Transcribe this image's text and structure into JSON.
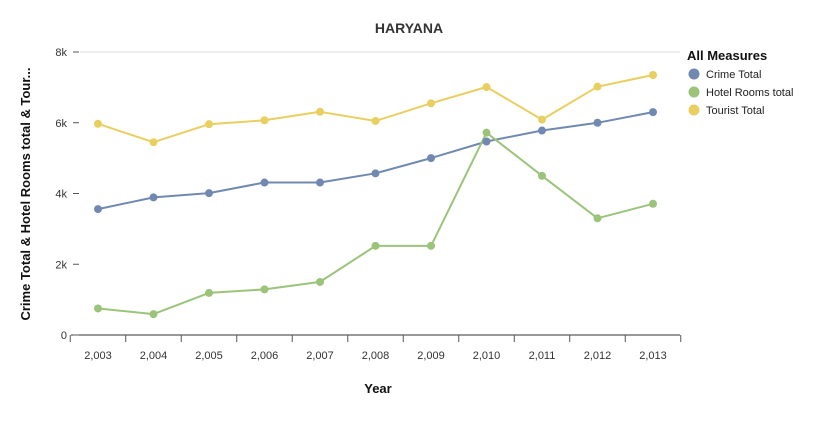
{
  "chart_data": {
    "type": "line",
    "title": "HARYANA",
    "xlabel": "Year",
    "ylabel": "Crime Total & Hotel Rooms total & Tour...",
    "categories": [
      "2,003",
      "2,004",
      "2,005",
      "2,006",
      "2,007",
      "2,008",
      "2,009",
      "2,010",
      "2,011",
      "2,012",
      "2,013"
    ],
    "ylim": [
      0,
      8000
    ],
    "yticks": [
      0,
      2000,
      4000,
      6000,
      8000
    ],
    "ytick_labels": [
      "0",
      "2k",
      "4k",
      "6k",
      "8k"
    ],
    "grid": "horizontal-top-line",
    "legend": {
      "title": "All Measures",
      "position": "right"
    },
    "series": [
      {
        "name": "Crime Total",
        "color": "#7189b0",
        "values": [
          3560,
          3890,
          4010,
          4310,
          4310,
          4570,
          5000,
          5470,
          5780,
          6000,
          6300
        ]
      },
      {
        "name": "Hotel Rooms total",
        "color": "#9bc47a",
        "values": [
          750,
          590,
          1190,
          1290,
          1500,
          2520,
          2520,
          5720,
          4500,
          3300,
          3710
        ]
      },
      {
        "name": "Tourist Total",
        "color": "#e9cf5f",
        "values": [
          5970,
          5450,
          5960,
          6070,
          6310,
          6050,
          6550,
          7010,
          6090,
          7020,
          7350
        ]
      }
    ]
  }
}
